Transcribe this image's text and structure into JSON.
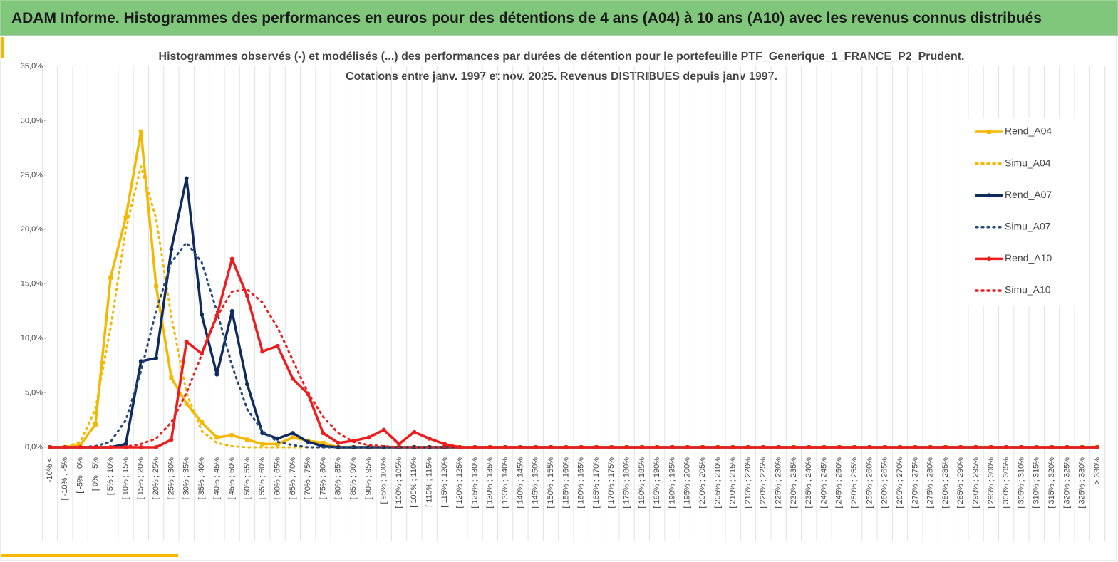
{
  "header": {
    "title": "ADAM Informe. Histogrammes des performances en euros pour des détentions de 4 ans (A04) à 10 ans (A10) avec les revenus connus distribués"
  },
  "chart_data": {
    "type": "line",
    "title": [
      "Histogrammes observés (-) et modélisés (...) des performances par durées de détention pour le portefeuille PTF_Generique_1_FRANCE_P2_Prudent.",
      "Cotations entre janv. 1997 et nov. 2025. Revenus DISTRIBUES depuis janv 1997."
    ],
    "categories": [
      "-10% <",
      "[ -10% ; -5%",
      "[ -5% ; 0%",
      "[ 0% ; 5%",
      "[ 5% ; 10%",
      "[ 10% ; 15%",
      "[ 15% ; 20%",
      "[ 20% ; 25%",
      "[ 25% ; 30%",
      "[ 30% ; 35%",
      "[ 35% ; 40%",
      "[ 40% ; 45%",
      "[ 45% ; 50%",
      "[ 50% ; 55%",
      "[ 55% ; 60%",
      "[ 60% ; 65%",
      "[ 65% ; 70%",
      "[ 70% ; 75%",
      "[ 75% ; 80%",
      "[ 80% ; 85%",
      "[ 85% ; 90%",
      "[ 90% ; 95%",
      "[ 95% ; 100%",
      "[ 100% ; 105%",
      "[ 105% ; 110%",
      "[ 110% ; 115%",
      "[ 115% ; 120%",
      "[ 120% ; 125%",
      "[ 125% ; 130%",
      "[ 130% ; 135%",
      "[ 135% ; 140%",
      "[ 140% ; 145%",
      "[ 145% ; 150%",
      "[ 150% ; 155%",
      "[ 155% ; 160%",
      "[ 160% ; 165%",
      "[ 165% ; 170%",
      "[ 170% ; 175%",
      "[ 175% ; 180%",
      "[ 180% ; 185%",
      "[ 185% ; 190%",
      "[ 190% ; 195%",
      "[ 195% ; 200%",
      "[ 200% ; 205%",
      "[ 205% ; 210%",
      "[ 210% ; 215%",
      "[ 215% ; 220%",
      "[ 220% ; 225%",
      "[ 225% ; 230%",
      "[ 230% ; 235%",
      "[ 235% ; 240%",
      "[ 240% ; 245%",
      "[ 245% ; 250%",
      "[ 250% ; 255%",
      "[ 255% ; 260%",
      "[ 260% ; 265%",
      "[ 265% ; 270%",
      "[ 270% ; 275%",
      "[ 275% ; 280%",
      "[ 280% ; 285%",
      "[ 285% ; 290%",
      "[ 290% ; 295%",
      "[ 295% ; 300%",
      "[ 300% ; 305%",
      "[ 305% ; 310%",
      "[ 310% ; 315%",
      "[ 315% ; 320%",
      "[ 320% ; 325%",
      "[ 325% ; 330%",
      "> 330%"
    ],
    "series": [
      {
        "name": "Rend_A04",
        "color": "#f5b800",
        "style": "solid",
        "marker": "square",
        "values": [
          0,
          0,
          0.2,
          2.1,
          15.6,
          21.1,
          29.0,
          14.8,
          6.4,
          4.0,
          2.3,
          0.9,
          1.1,
          0.7,
          0.3,
          0.3,
          0.9,
          0.6,
          0.4,
          0,
          0,
          0,
          0,
          0,
          0,
          0,
          0,
          0,
          0,
          0,
          0,
          0,
          0,
          0,
          0,
          0,
          0,
          0,
          0,
          0,
          0,
          0,
          0,
          0,
          0,
          0,
          0,
          0,
          0,
          0,
          0,
          0,
          0,
          0,
          0,
          0,
          0,
          0,
          0,
          0,
          0,
          0,
          0,
          0,
          0,
          0,
          0,
          0,
          0,
          0
        ]
      },
      {
        "name": "Simu_A04",
        "color": "#f5b800",
        "style": "dotted",
        "marker": "none",
        "values": [
          0,
          0,
          0.5,
          3.5,
          11,
          20,
          25.8,
          21,
          12,
          5,
          1.5,
          0.4,
          0.1,
          0,
          0,
          0,
          0,
          0,
          0,
          0,
          0,
          0,
          0,
          0,
          0,
          0,
          0,
          0,
          0,
          0,
          0,
          0,
          0,
          0,
          0,
          0,
          0,
          0,
          0,
          0,
          0,
          0,
          0,
          0,
          0,
          0,
          0,
          0,
          0,
          0,
          0,
          0,
          0,
          0,
          0,
          0,
          0,
          0,
          0,
          0,
          0,
          0,
          0,
          0,
          0,
          0,
          0,
          0,
          0,
          0
        ]
      },
      {
        "name": "Rend_A07",
        "color": "#0f2a5e",
        "style": "solid",
        "marker": "circle",
        "values": [
          0,
          0,
          0,
          0,
          0,
          0.3,
          7.9,
          8.2,
          18.2,
          24.7,
          12.2,
          6.7,
          12.5,
          5.8,
          1.3,
          0.8,
          1.3,
          0.5,
          0.1,
          0,
          0,
          0,
          0,
          0,
          0,
          0,
          0,
          0,
          0,
          0,
          0,
          0,
          0,
          0,
          0,
          0,
          0,
          0,
          0,
          0,
          0,
          0,
          0,
          0,
          0,
          0,
          0,
          0,
          0,
          0,
          0,
          0,
          0,
          0,
          0,
          0,
          0,
          0,
          0,
          0,
          0,
          0,
          0,
          0,
          0,
          0,
          0,
          0,
          0,
          0
        ]
      },
      {
        "name": "Simu_A07",
        "color": "#27497a",
        "style": "dotted",
        "marker": "none",
        "values": [
          0,
          0,
          0,
          0.1,
          0.5,
          2.5,
          7,
          12.5,
          17,
          18.8,
          17,
          12.5,
          7.5,
          3.5,
          1.5,
          0.5,
          0.2,
          0,
          0,
          0,
          0,
          0,
          0,
          0,
          0,
          0,
          0,
          0,
          0,
          0,
          0,
          0,
          0,
          0,
          0,
          0,
          0,
          0,
          0,
          0,
          0,
          0,
          0,
          0,
          0,
          0,
          0,
          0,
          0,
          0,
          0,
          0,
          0,
          0,
          0,
          0,
          0,
          0,
          0,
          0,
          0,
          0,
          0,
          0,
          0,
          0,
          0,
          0,
          0,
          0
        ]
      },
      {
        "name": "Rend_A10",
        "color": "#ee1c1c",
        "style": "solid",
        "marker": "circle",
        "values": [
          0,
          0,
          0,
          0,
          0,
          0,
          0,
          0,
          0.7,
          9.7,
          8.6,
          12.1,
          17.3,
          13.9,
          8.8,
          9.3,
          6.3,
          4.9,
          1.3,
          0.4,
          0.6,
          0.9,
          1.6,
          0.3,
          1.4,
          0.8,
          0.3,
          0,
          0,
          0,
          0,
          0,
          0,
          0,
          0,
          0,
          0,
          0,
          0,
          0,
          0,
          0,
          0,
          0,
          0,
          0,
          0,
          0,
          0,
          0,
          0,
          0,
          0,
          0,
          0,
          0,
          0,
          0,
          0,
          0,
          0,
          0,
          0,
          0,
          0,
          0,
          0,
          0,
          0,
          0
        ]
      },
      {
        "name": "Simu_A10",
        "color": "#ee1c1c",
        "style": "dotted",
        "marker": "none",
        "values": [
          0,
          0,
          0,
          0,
          0,
          0.05,
          0.3,
          0.8,
          2.3,
          5,
          8.5,
          12,
          14.3,
          14.5,
          13.3,
          11,
          8,
          5,
          2.8,
          1.3,
          0.5,
          0.2,
          0.1,
          0,
          0,
          0,
          0,
          0,
          0,
          0,
          0,
          0,
          0,
          0,
          0,
          0,
          0,
          0,
          0,
          0,
          0,
          0,
          0,
          0,
          0,
          0,
          0,
          0,
          0,
          0,
          0,
          0,
          0,
          0,
          0,
          0,
          0,
          0,
          0,
          0,
          0,
          0,
          0,
          0,
          0,
          0,
          0,
          0,
          0,
          0
        ]
      }
    ],
    "ylim": [
      0,
      35
    ],
    "yticks": [
      {
        "value": 0,
        "label": "0,0%"
      },
      {
        "value": 5,
        "label": "5,0%"
      },
      {
        "value": 10,
        "label": "10,0%"
      },
      {
        "value": 15,
        "label": "15,0%"
      },
      {
        "value": 20,
        "label": "20,0%"
      },
      {
        "value": 25,
        "label": "25,0%"
      },
      {
        "value": 30,
        "label": "30,0%"
      },
      {
        "value": 35,
        "label": "35,0%"
      }
    ],
    "grid": false,
    "legend": "right"
  }
}
